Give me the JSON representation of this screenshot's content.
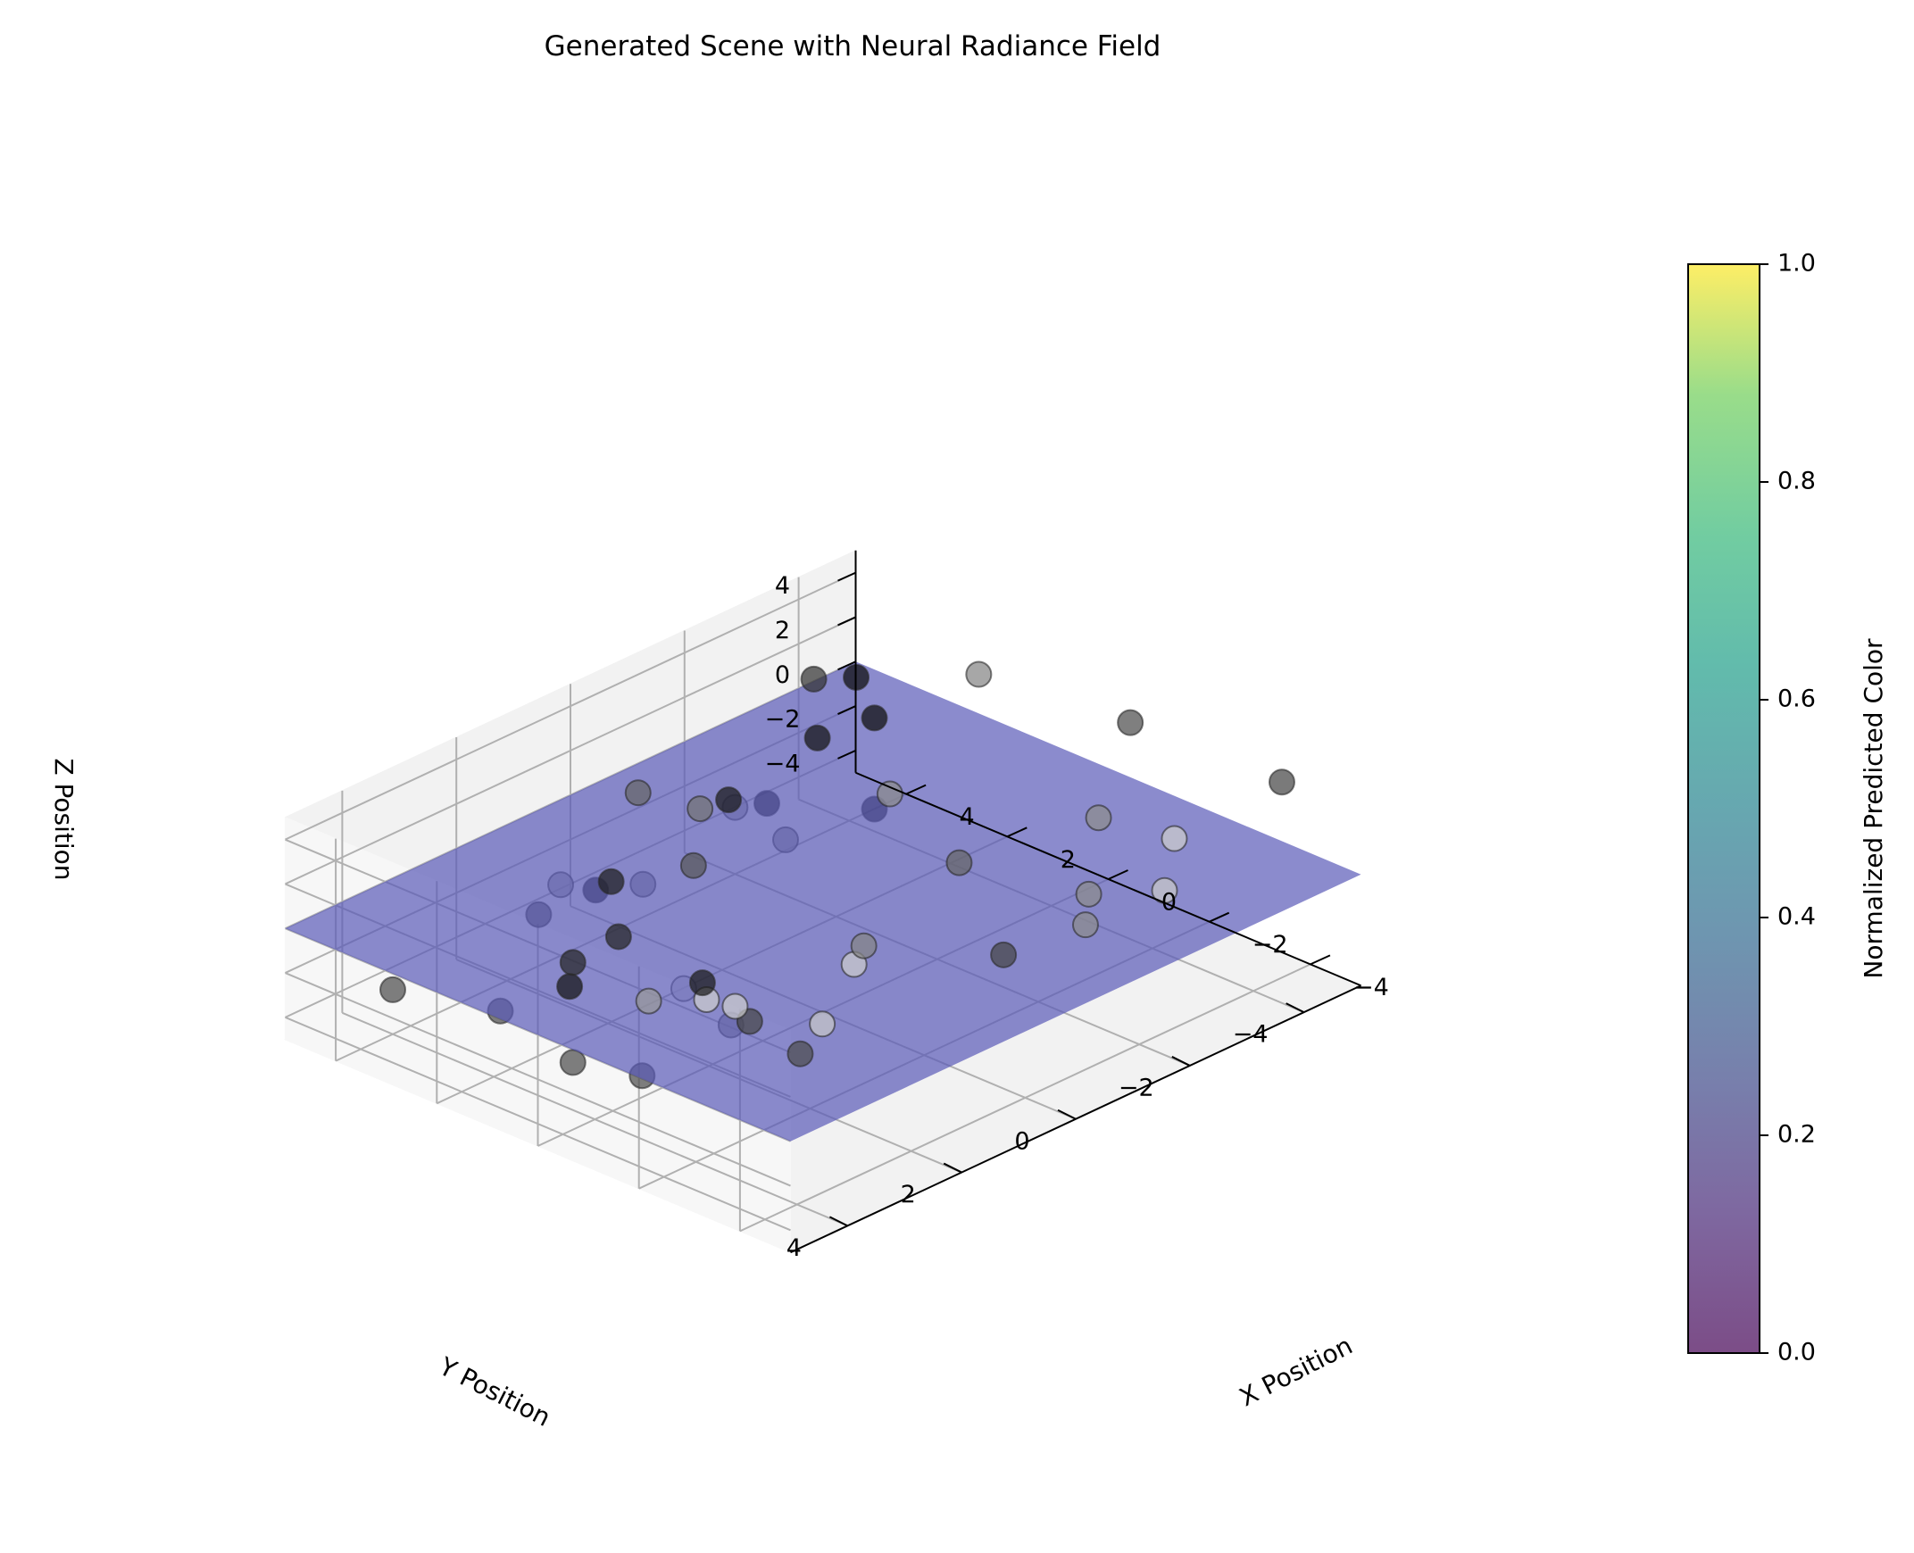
{
  "chart_data": {
    "type": "scatter",
    "projection": "3d",
    "title": "Generated Scene with Neural Radiance Field",
    "xlabel": "X Position",
    "ylabel": "Y Position",
    "zlabel": "Z Position",
    "xlim": [
      -5,
      5
    ],
    "ylim": [
      -5,
      5
    ],
    "zlim": [
      -5,
      5
    ],
    "x_ticks": [
      -4,
      -2,
      0,
      2,
      4
    ],
    "y_ticks": [
      -4,
      -2,
      0,
      2,
      4
    ],
    "z_ticks": [
      -4,
      -2,
      0,
      2,
      4
    ],
    "x_tick_labels": [
      "−4",
      "−2",
      "0",
      "2",
      "4"
    ],
    "y_tick_labels": [
      "−4",
      "−2",
      "0",
      "2",
      "4"
    ],
    "z_tick_labels": [
      "−4",
      "−2",
      "0",
      "2",
      "4"
    ],
    "grid": true,
    "surface": {
      "z": 0,
      "color": "#5a5ab8",
      "opacity": 0.7
    },
    "colorbar": {
      "label": "Normalized Predicted Color",
      "min": 0.0,
      "max": 1.0,
      "ticks": [
        0.0,
        0.2,
        0.4,
        0.6,
        0.8,
        1.0
      ],
      "tick_labels": [
        "0.0",
        "0.2",
        "0.4",
        "0.6",
        "0.8",
        "1.0"
      ],
      "colormap": "viridis"
    },
    "points": [
      {
        "x": -4.0,
        "y": 3.0,
        "z": 4.6,
        "gray": 0.8
      },
      {
        "x": -4.5,
        "y": 4.0,
        "z": 3.6,
        "gray": 0.78
      },
      {
        "x": -3.0,
        "y": 4.7,
        "z": 4.1,
        "gray": 0.8
      },
      {
        "x": -3.0,
        "y": 4.2,
        "z": 3.2,
        "gray": 0.8
      },
      {
        "x": -4.7,
        "y": 1.0,
        "z": 3.3,
        "gray": 0.28
      },
      {
        "x": -4.5,
        "y": -2.0,
        "z": 2.4,
        "gray": 0.78
      },
      {
        "x": -4.0,
        "y": -4.5,
        "z": 3.8,
        "gray": 0.28
      },
      {
        "x": -1.0,
        "y": -4.5,
        "z": 3.6,
        "gray": 0.3
      },
      {
        "x": 2.0,
        "y": -4.5,
        "z": 2.9,
        "gray": 0.52
      },
      {
        "x": -3.0,
        "y": -3.5,
        "z": 1.5,
        "gray": 0.8
      },
      {
        "x": -2.5,
        "y": 1.5,
        "z": 2.2,
        "gray": 0.52
      },
      {
        "x": -2.5,
        "y": 3.5,
        "z": 1.2,
        "gray": 0.28
      },
      {
        "x": -3.5,
        "y": 3.5,
        "z": 0.7,
        "gray": 0.3
      },
      {
        "x": -1.5,
        "y": -3.5,
        "z": 1.0,
        "gray": 0.55
      },
      {
        "x": -3.0,
        "y": -2.0,
        "z": 0.8,
        "gray": 0.55
      },
      {
        "x": -3.5,
        "y": -1.5,
        "z": 0.5,
        "gray": 0.55
      },
      {
        "x": -1.0,
        "y": 3.0,
        "z": 0.9,
        "gray": 0.1
      },
      {
        "x": 0.5,
        "y": 4.0,
        "z": 0.5,
        "gray": 0.08
      },
      {
        "x": 1.0,
        "y": 3.5,
        "z": 0.5,
        "gray": 0.15
      },
      {
        "x": 1.0,
        "y": 2.7,
        "z": 0.7,
        "gray": 0.15
      },
      {
        "x": 2.5,
        "y": 1.5,
        "z": 0.3,
        "gray": 0.12
      },
      {
        "x": 2.0,
        "y": 0.5,
        "z": 0.3,
        "gray": 0.35
      },
      {
        "x": 3.0,
        "y": -1.0,
        "z": 0.5,
        "gray": 0.1
      },
      {
        "x": 3.0,
        "y": -0.5,
        "z": 0.7,
        "gray": 0.45
      },
      {
        "x": 4.0,
        "y": -0.3,
        "z": 0.7,
        "gray": 0.4
      },
      {
        "x": -1.0,
        "y": -1.5,
        "z": 0.9,
        "gray": 0.4
      },
      {
        "x": 1.5,
        "y": -2.5,
        "z": 0.4,
        "gray": 0.55
      },
      {
        "x": 3.5,
        "y": -3.0,
        "z": 0.4,
        "gray": 0.08
      },
      {
        "x": 4.2,
        "y": -4.3,
        "z": 0.9,
        "gray": 0.05
      },
      {
        "x": 4.7,
        "y": -4.0,
        "z": 0.7,
        "gray": 0.2
      },
      {
        "x": 3.5,
        "y": -4.0,
        "z": 0.1,
        "gray": 0.05
      },
      {
        "x": -1.0,
        "y": 2.5,
        "z": -1.6,
        "gray": 0.5
      },
      {
        "x": 0.5,
        "y": 2.0,
        "z": -2.0,
        "gray": 0.8
      },
      {
        "x": 1.0,
        "y": 3.5,
        "z": -4.0,
        "gray": 0.3
      },
      {
        "x": 3.0,
        "y": 3.0,
        "z": -4.2,
        "gray": 0.3
      },
      {
        "x": 3.0,
        "y": 0.5,
        "z": -1.5,
        "gray": 0.55
      },
      {
        "x": 4.0,
        "y": -2.0,
        "z": -2.0,
        "gray": 0.6
      },
      {
        "x": 3.0,
        "y": -2.0,
        "z": -2.5,
        "gray": 0.55
      },
      {
        "x": 4.5,
        "y": -3.0,
        "z": -3.5,
        "gray": 0.05
      },
      {
        "x": 3.5,
        "y": -4.0,
        "z": -4.0,
        "gray": 0.05
      },
      {
        "x": 4.5,
        "y": 0.0,
        "z": -3.8,
        "gray": 0.05
      },
      {
        "x": 4.5,
        "y": 1.0,
        "z": -3.7,
        "gray": 0.3
      },
      {
        "x": 4.0,
        "y": 4.0,
        "z": -3.0,
        "gray": 0.3
      },
      {
        "x": -1.5,
        "y": 4.5,
        "z": -1.0,
        "gray": 0.3
      },
      {
        "x": -0.5,
        "y": 3.5,
        "z": 0.2,
        "gray": 0.6
      },
      {
        "x": 3.5,
        "y": 1.5,
        "z": -0.8,
        "gray": 0.6
      }
    ]
  }
}
